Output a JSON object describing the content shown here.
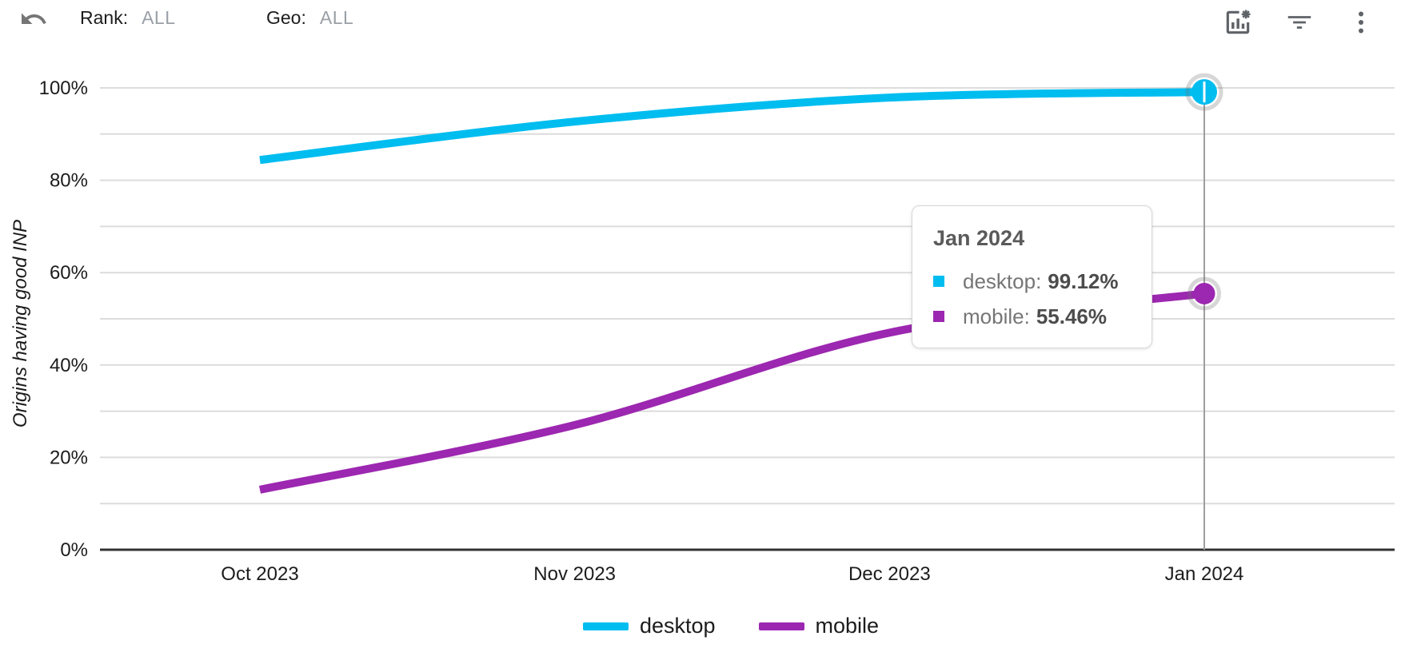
{
  "toolbar": {
    "undo": "undo",
    "rank_label": "Rank:",
    "rank_value": "ALL",
    "geo_label": "Geo:",
    "geo_value": "ALL",
    "right_icons": [
      "chart-settings-icon",
      "filter-icon",
      "more-options-icon"
    ]
  },
  "chart_data": {
    "type": "line",
    "title": "",
    "xlabel": "",
    "ylabel": "Origins having good INP",
    "categories": [
      "Oct 2023",
      "Nov 2023",
      "Dec 2023",
      "Jan 2024"
    ],
    "series": [
      {
        "name": "desktop",
        "color": "#00bdf0",
        "values": [
          84.4,
          92.7,
          97.9,
          99.12
        ]
      },
      {
        "name": "mobile",
        "color": "#9c27b0",
        "values": [
          13.0,
          27.0,
          47.0,
          55.46
        ]
      }
    ],
    "ylim": [
      0,
      100
    ],
    "y_gridline_step": 10,
    "y_tick_labels": [
      "0%",
      "20%",
      "40%",
      "60%",
      "80%",
      "100%"
    ],
    "grid": true,
    "legend_position": "bottom",
    "selected_index": 3,
    "selected_label": "Jan 2024"
  },
  "tooltip": {
    "title": "Jan 2024",
    "rows": [
      {
        "label": "desktop:",
        "value": "99.12%",
        "color": "#00bdf0"
      },
      {
        "label": "mobile:",
        "value": "55.46%",
        "color": "#9c27b0"
      }
    ]
  },
  "legend": {
    "items": [
      {
        "label": "desktop",
        "color": "#00bdf0"
      },
      {
        "label": "mobile",
        "color": "#9c27b0"
      }
    ]
  },
  "colors": {
    "gridline": "#dcdcdc",
    "axis_line": "#333333",
    "crosshair": "#9e9e9e",
    "icon": "#5f6368",
    "muted_text": "#9aa0a6"
  }
}
